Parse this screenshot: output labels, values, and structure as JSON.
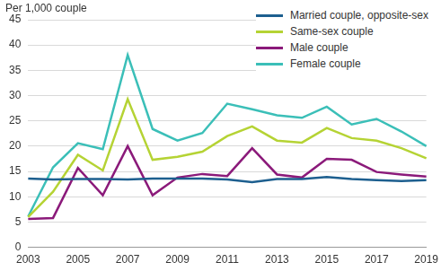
{
  "chart_data": {
    "type": "line",
    "y_label": "Per 1,000 couple",
    "categories": [
      "2003",
      null,
      "2005",
      null,
      "2007",
      null,
      "2009",
      null,
      "2011",
      null,
      "2013",
      null,
      "2015",
      null,
      "2017",
      null,
      "2019"
    ],
    "series": [
      {
        "name": "Married couple, opposite-sex",
        "color": "#1d5f8f",
        "values": [
          13.6,
          13.4,
          13.5,
          13.5,
          13.4,
          13.6,
          13.6,
          13.6,
          13.4,
          12.9,
          13.5,
          13.5,
          13.9,
          13.5,
          13.3,
          13.1,
          13.3
        ]
      },
      {
        "name": "Same-sex couple",
        "color": "#b5d334",
        "values": [
          6.0,
          11.0,
          18.3,
          15.2,
          29.3,
          17.3,
          17.9,
          18.9,
          22.0,
          23.9,
          21.1,
          20.7,
          23.6,
          21.6,
          21.1,
          19.6,
          17.6
        ]
      },
      {
        "name": "Male couple",
        "color": "#8b1a7a",
        "values": [
          5.6,
          5.8,
          15.7,
          10.3,
          20.0,
          10.3,
          13.8,
          14.5,
          14.1,
          19.6,
          14.4,
          13.8,
          17.5,
          17.3,
          14.9,
          14.4,
          14.0
        ]
      },
      {
        "name": "Female couple",
        "color": "#3bbfb8",
        "values": [
          6.1,
          15.8,
          20.6,
          19.4,
          38.0,
          23.4,
          21.1,
          22.6,
          28.4,
          27.3,
          26.1,
          25.6,
          27.8,
          24.3,
          25.4,
          22.9,
          20.0
        ]
      }
    ],
    "ylim": [
      0,
      45
    ],
    "yticks": [
      0,
      5,
      10,
      15,
      20,
      25,
      30,
      35,
      40,
      45
    ],
    "grid": true,
    "legend": "top-right"
  }
}
